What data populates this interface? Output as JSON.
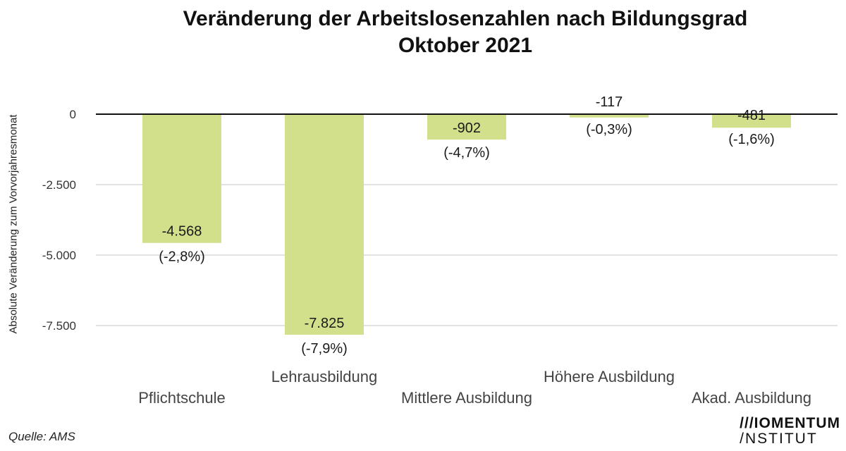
{
  "header": {
    "title_line1": "Veränderung der Arbeitslosenzahlen nach Bildungsgrad",
    "title_line2": "Oktober 2021"
  },
  "footer": {
    "source": "Quelle: AMS",
    "logo_line1": "///IOMENTUM",
    "logo_line2": "/NSTITUT"
  },
  "colors": {
    "bar": "#d2e08c",
    "grid": "#e2e2e2",
    "zero_line": "#111111",
    "text": "#1a1a1a"
  },
  "chart_data": {
    "type": "bar",
    "title": "Veränderung der Arbeitslosenzahlen nach Bildungsgrad Oktober 2021",
    "xlabel": "",
    "ylabel": "Absolute Veränderung zum Vorvorjahresmonat",
    "ylim": [
      -8000,
      0
    ],
    "yticks": [
      0,
      -2500,
      -5000,
      -7500
    ],
    "ytick_labels": [
      "0",
      "-2.500",
      "-5.000",
      "-7.500"
    ],
    "grid": true,
    "categories": [
      "Pflichtschule",
      "Lehrausbildung",
      "Mittlere Ausbildung",
      "Höhere Ausbildung",
      "Akad. Ausbildung"
    ],
    "values": [
      -4568,
      -7825,
      -902,
      -117,
      -481
    ],
    "value_labels": [
      "-4.568",
      "-7.825",
      "-902",
      "-117",
      "-481"
    ],
    "pct_labels": [
      "(-2,8%)",
      "(-7,9%)",
      "(-4,7%)",
      "(-0,3%)",
      "(-1,6%)"
    ]
  }
}
